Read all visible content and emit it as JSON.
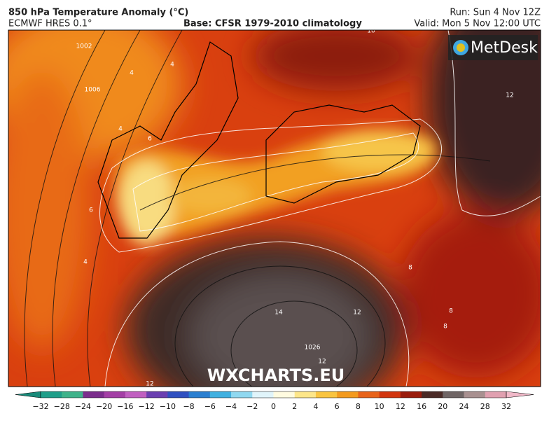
{
  "header": {
    "title": "850 hPa Temperature Anomaly (°C)",
    "model": "ECMWF HRES 0.1°",
    "base": "Base: CFSR 1979-2010 climatology",
    "run": "Run: Sun 4 Nov 12Z",
    "valid": "Valid: Mon 5 Nov 12:00 UTC"
  },
  "map": {
    "logo": "MetDesk",
    "watermark": "WXCHARTS.EU",
    "contour_labels": [
      "1002",
      "1006",
      "4",
      "4",
      "4",
      "6",
      "6",
      "4",
      "12",
      "8",
      "8",
      "8",
      "14",
      "12",
      "1026",
      "12",
      "12",
      "10"
    ]
  },
  "colorbar": {
    "ticks": [
      "−32",
      "−28",
      "−24",
      "−20",
      "−16",
      "−12",
      "−10",
      "−8",
      "−6",
      "−4",
      "−2",
      "0",
      "2",
      "4",
      "6",
      "8",
      "10",
      "12",
      "16",
      "20",
      "24",
      "28",
      "32"
    ]
  }
}
